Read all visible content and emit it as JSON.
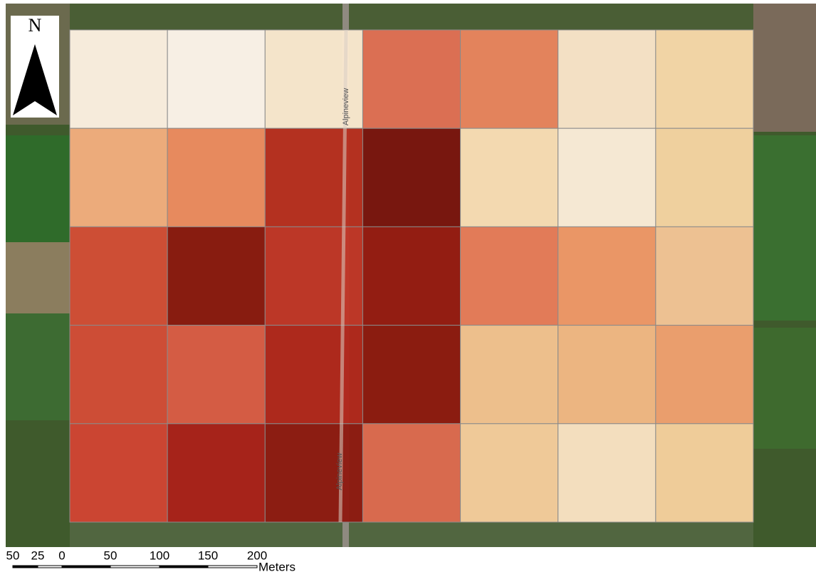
{
  "map": {
    "north_label": "N",
    "road_labels": [
      "Alpineview",
      "Alpineview"
    ],
    "grid": {
      "rows": [
        [
          "#fcf0e1",
          "#fdf4ea",
          "#fae8d0",
          "#e07055",
          "#e8845e",
          "#f9e4c9",
          "#f7d8a9"
        ],
        [
          "#f2ad7e",
          "#ec8b60",
          "#b82f20",
          "#7a150e",
          "#f9ddb5",
          "#fbecd9",
          "#f5d4a2"
        ],
        [
          "#d24d36",
          "#8a1a10",
          "#c03627",
          "#961b12",
          "#e77c5a",
          "#ef9868",
          "#f3c496"
        ],
        [
          "#d24c37",
          "#d95c45",
          "#b1271c",
          "#8d1a10",
          "#f3c290",
          "#f2b884",
          "#efa070"
        ],
        [
          "#cf4433",
          "#a9211a",
          "#8e1b12",
          "#dd6a50",
          "#f5cc9c",
          "#f9e2c3",
          "#f5cf9d"
        ]
      ]
    },
    "scale_bar": {
      "labels": [
        "50",
        "25",
        "0",
        "50",
        "100",
        "150",
        "200"
      ],
      "unit": "Meters"
    }
  }
}
